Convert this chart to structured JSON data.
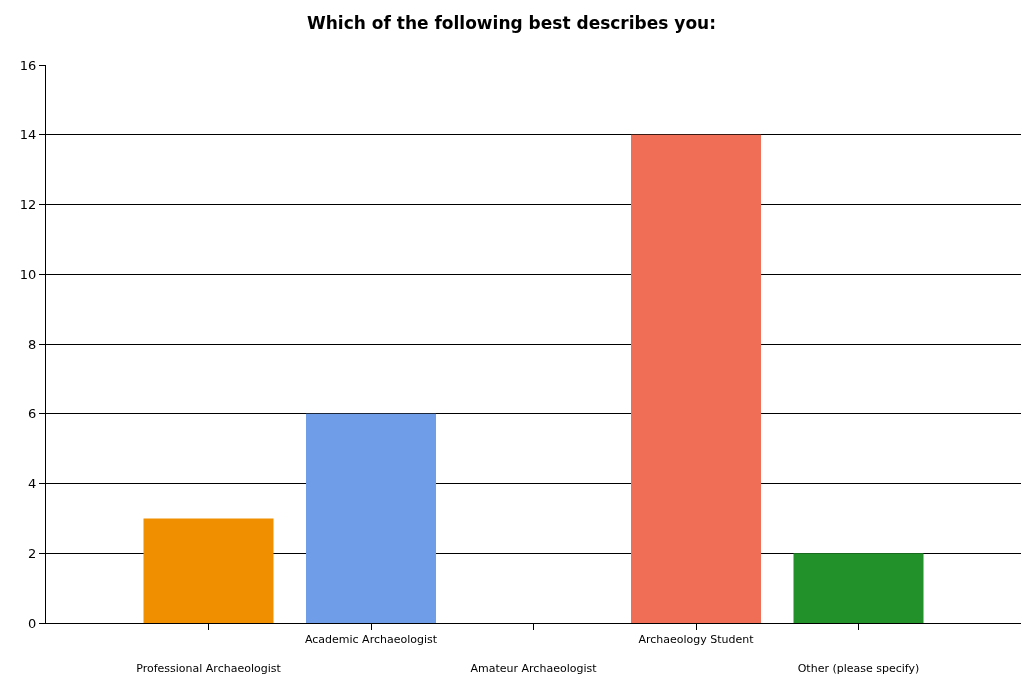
{
  "chart_data": {
    "type": "bar",
    "title": "Which of the following best describes you:",
    "categories": [
      "Professional Archaeologist",
      "Academic Archaeologist",
      "Amateur Archaeologist",
      "Archaeology Student",
      "Other (please specify)"
    ],
    "values": [
      3,
      6,
      0,
      14,
      2
    ],
    "colors": [
      "#f09000",
      "#6f9de8",
      "#8064a2",
      "#f06e55",
      "#22912a"
    ],
    "ylim": [
      0,
      16
    ],
    "yticks": [
      0,
      2,
      4,
      6,
      8,
      10,
      12,
      14,
      16
    ],
    "grid": "y"
  }
}
